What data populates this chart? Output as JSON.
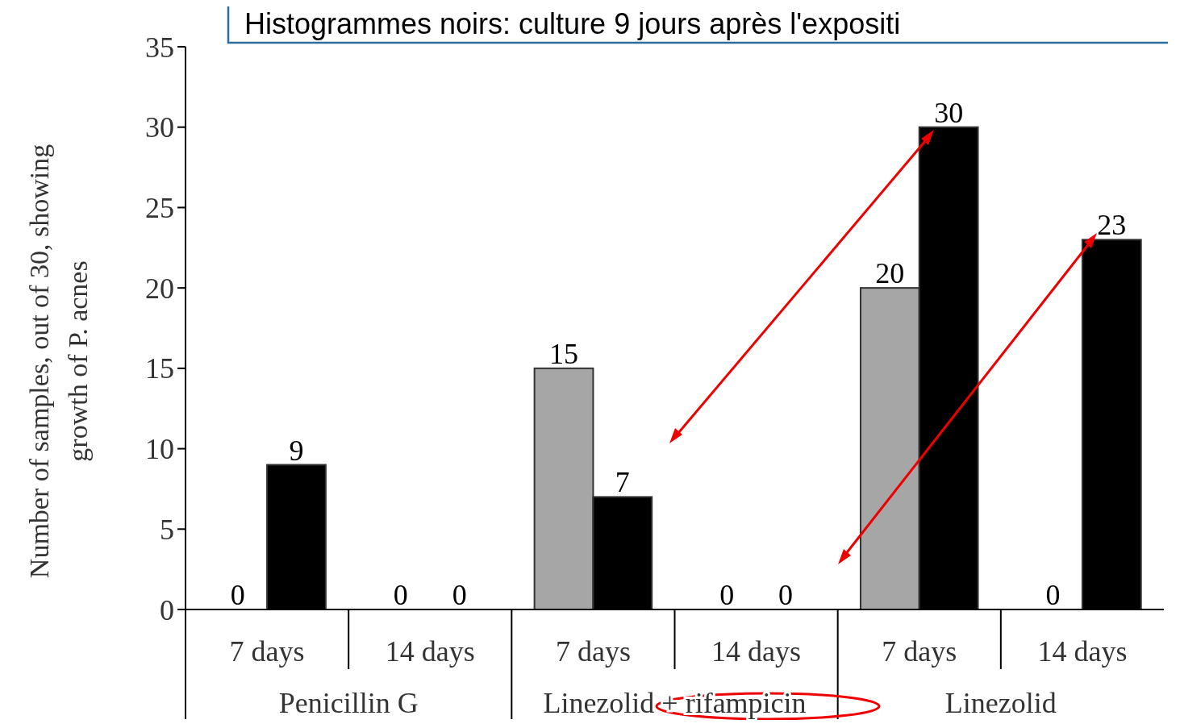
{
  "chart_data": {
    "type": "bar",
    "title": "Histogrammes noirs: culture 9 jours après l'expositi",
    "ylabel": "Number of samples, out of 30, showing growth of P. acnes",
    "categories": [
      "7 days",
      "14 days",
      "7 days",
      "14 days",
      "7 days",
      "14 days"
    ],
    "annotations": [
      "Penicillin G",
      "Linezolid + rifampicin",
      "Linezolid"
    ],
    "series": [
      {
        "color": "#a6a6a6",
        "values": [
          0,
          0,
          15,
          0,
          20,
          0
        ]
      },
      {
        "color": "#000000",
        "values": [
          9,
          0,
          7,
          0,
          30,
          23
        ]
      }
    ],
    "ylim": [
      0,
      35
    ],
    "yticks": [
      0,
      5,
      10,
      15,
      20,
      25,
      30,
      35
    ],
    "data_labels": true,
    "grid": false
  }
}
